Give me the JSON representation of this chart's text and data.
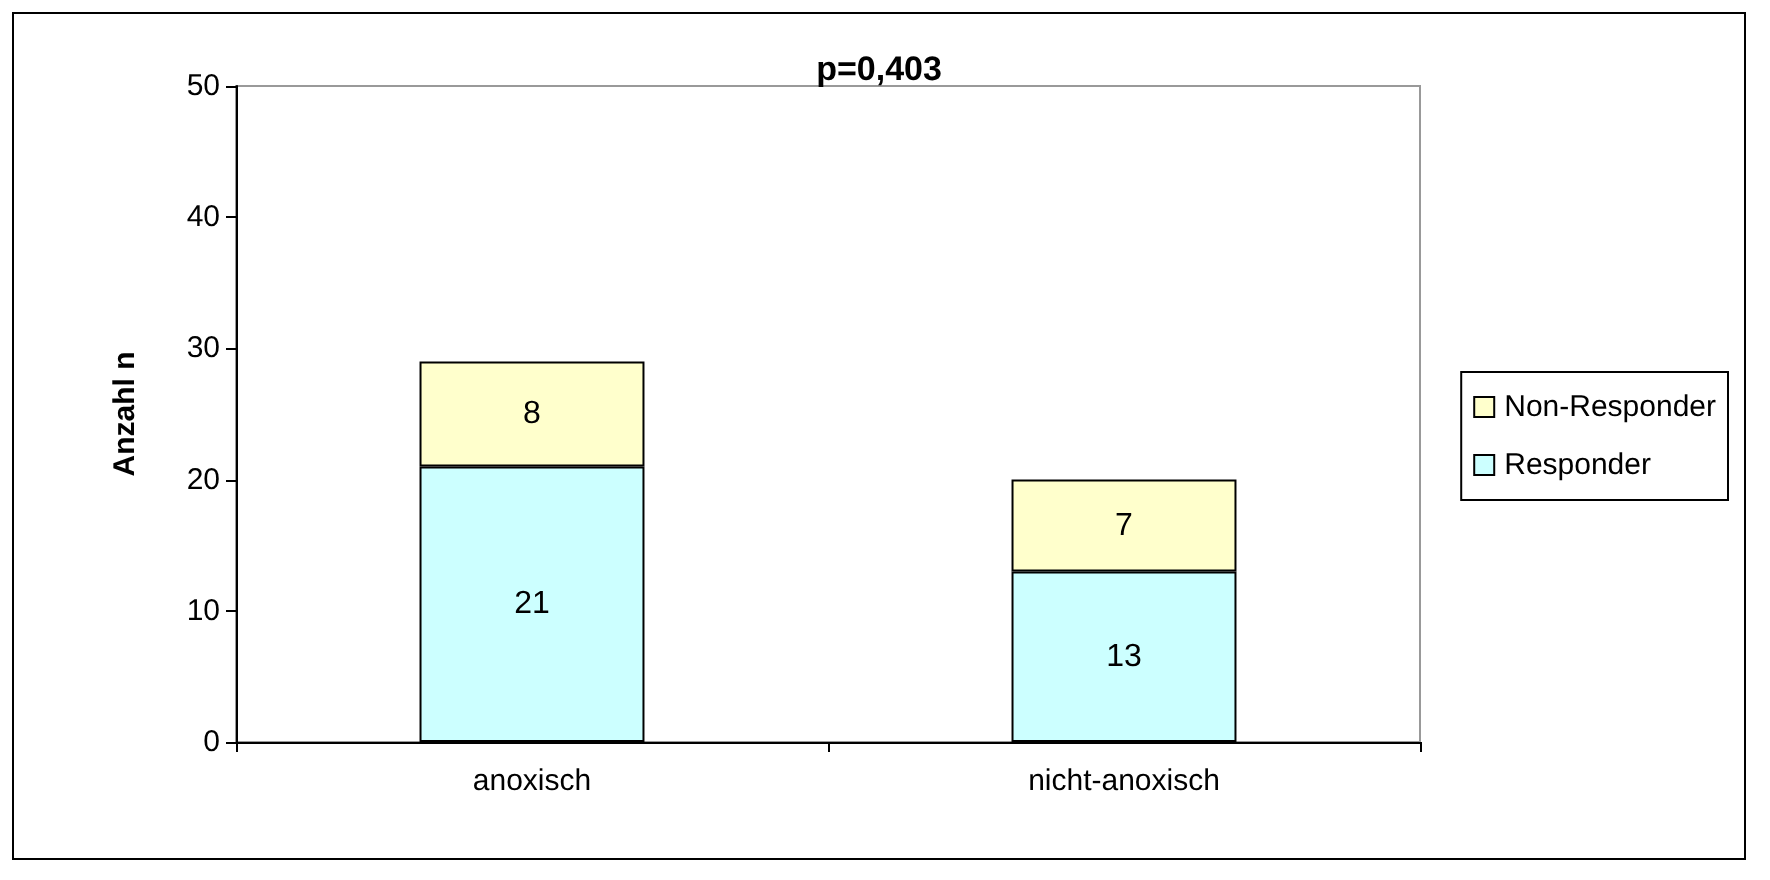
{
  "chart_data": {
    "type": "bar",
    "title": "p=0,403",
    "ylabel": "Anzahl n",
    "categories": [
      "anoxisch",
      "nicht-anoxisch"
    ],
    "series": [
      {
        "name": "Responder",
        "color": "#ccffff",
        "values": [
          21,
          13
        ]
      },
      {
        "name": "Non-Responder",
        "color": "#ffffcc",
        "values": [
          8,
          7
        ]
      }
    ],
    "stacked": true,
    "data_labels": true,
    "ylim": [
      0,
      50
    ],
    "yticks": [
      0,
      10,
      20,
      30,
      40,
      50
    ],
    "grid": false,
    "legend": "right"
  }
}
